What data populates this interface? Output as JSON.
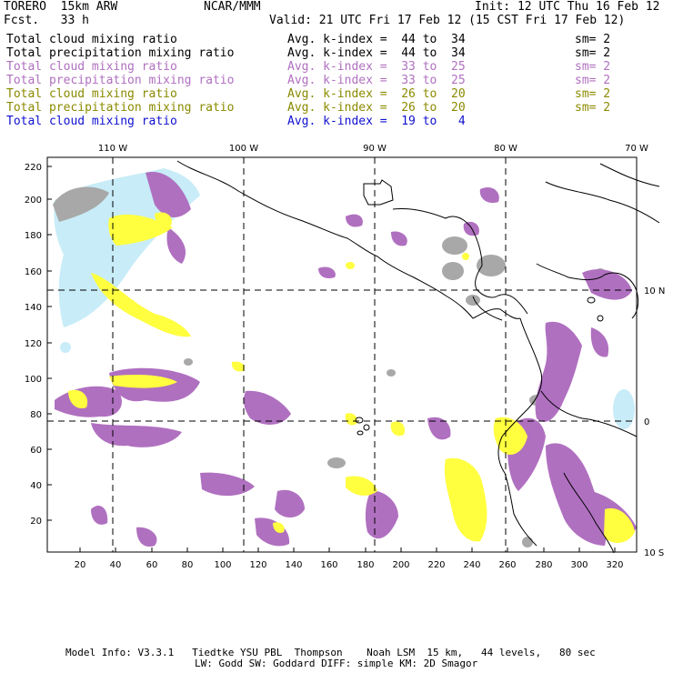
{
  "header": {
    "run_name": "TORERO  15km ARW",
    "center": "NCAR/MMM",
    "init": "Init: 12 UTC Thu 16 Feb 12",
    "fcst": "Fcst.   33 h",
    "valid": "Valid: 21 UTC Fri 17 Feb 12 (15 CST Fri 17 Feb 12)"
  },
  "legend": [
    {
      "field": "Total cloud mixing ratio",
      "kindex": "Avg. k-index =  44 to  34",
      "sm": "sm= 2",
      "color": "#000000"
    },
    {
      "field": "Total precipitation mixing ratio",
      "kindex": "Avg. k-index =  44 to  34",
      "sm": "sm= 2",
      "color": "#000000"
    },
    {
      "field": "Total cloud mixing ratio",
      "kindex": "Avg. k-index =  33 to  25",
      "sm": "sm= 2",
      "color": "#b070c0"
    },
    {
      "field": "Total precipitation mixing ratio",
      "kindex": "Avg. k-index =  33 to  25",
      "sm": "sm= 2",
      "color": "#b070c0"
    },
    {
      "field": "Total cloud mixing ratio",
      "kindex": "Avg. k-index =  26 to  20",
      "sm": "sm= 2",
      "color": "#8a8a00"
    },
    {
      "field": "Total precipitation mixing ratio",
      "kindex": "Avg. k-index =  26 to  20",
      "sm": "sm= 2",
      "color": "#8a8a00"
    },
    {
      "field": "Total cloud mixing ratio",
      "kindex": "Avg. k-index =  19 to   4",
      "sm": "",
      "color": "#1010d0"
    }
  ],
  "map": {
    "lon_labels": [
      "110 W",
      "100 W",
      "90 W",
      "80 W",
      "70 W"
    ],
    "lat_labels": [
      "10 N",
      "0",
      "10 S"
    ],
    "y_ticks": [
      "220",
      "200",
      "180",
      "160",
      "140",
      "120",
      "100",
      "80",
      "60",
      "40",
      "20"
    ],
    "x_ticks": [
      "20",
      "40",
      "60",
      "80",
      "100",
      "120",
      "140",
      "160",
      "180",
      "200",
      "220",
      "240",
      "260",
      "280",
      "300",
      "320"
    ]
  },
  "colors": {
    "gray": "#a8a8a8",
    "purple": "#b070c0",
    "yellow": "#ffff40",
    "lightblue": "#c8ecf8"
  },
  "footer": {
    "line1": "Model Info: V3.3.1   Tiedtke YSU PBL  Thompson    Noah LSM  15 km,   44 levels,   80 sec",
    "line2": "LW: Godd SW: Goddard DIFF: simple KM: 2D Smagor"
  }
}
